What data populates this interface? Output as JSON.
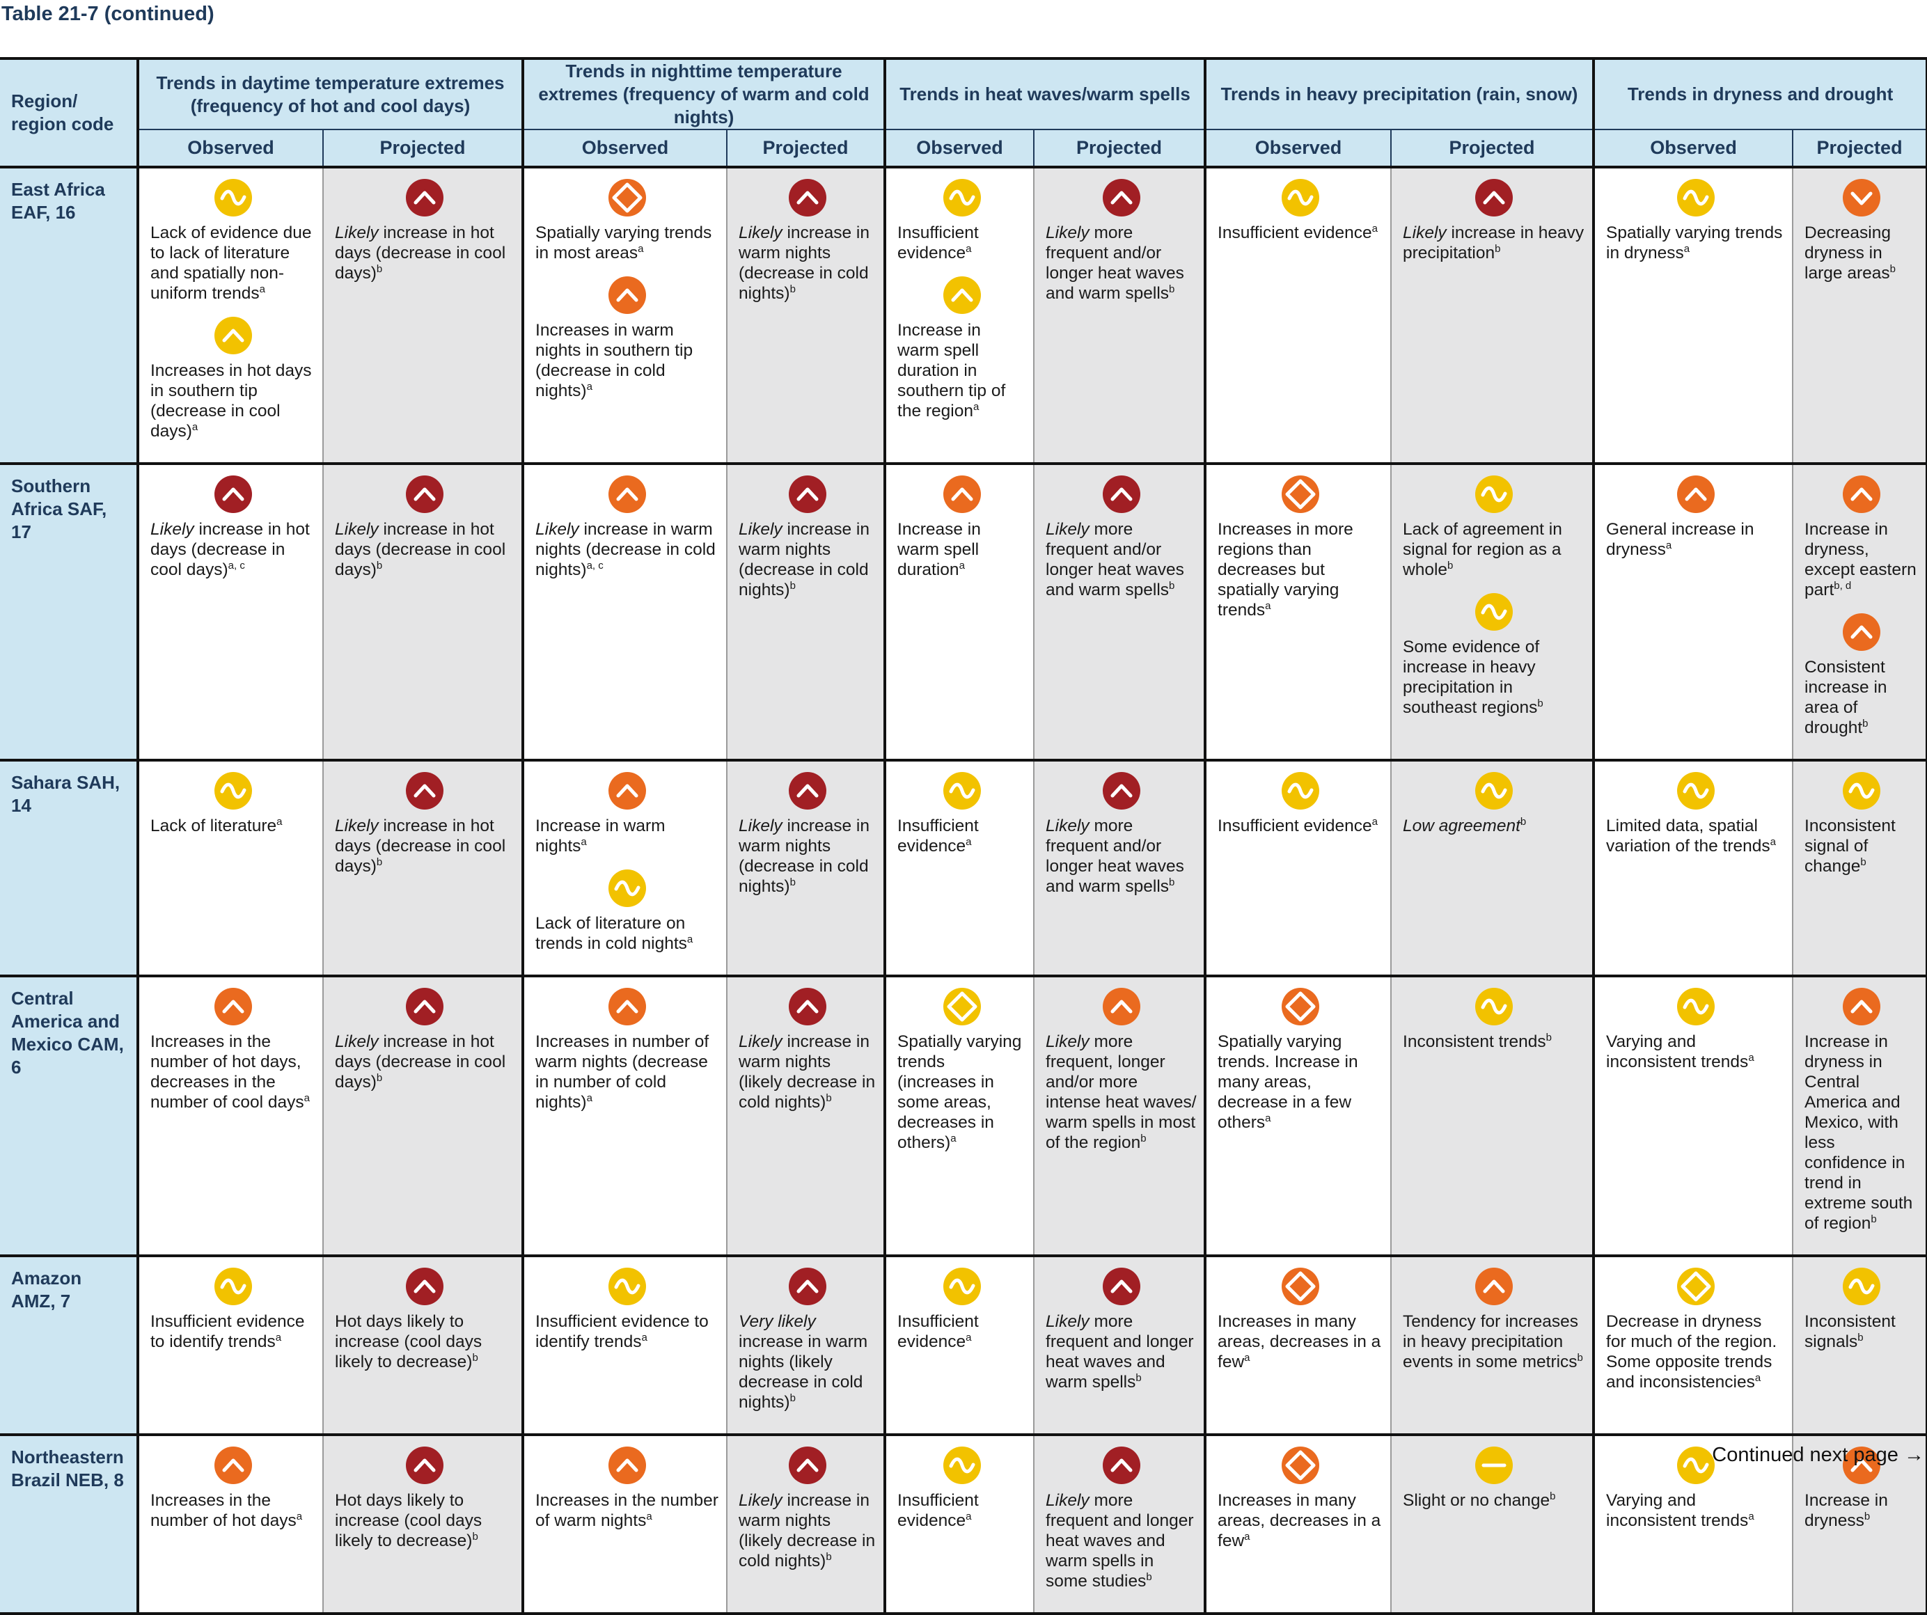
{
  "caption": "Table 21-7 (continued)",
  "footer": "Continued next page →",
  "colors": {
    "yellow": "#f2c200",
    "orange": "#ea6a1f",
    "dark_red": "#a11f24",
    "header_bg": "#cde6f2",
    "projected_bg": "#e5e5e6"
  },
  "header": {
    "region_label": "Region/ region code",
    "groups": [
      "Trends in daytime temperature extremes (frequency of hot and cool days)",
      "Trends in nighttime temperature extremes (frequency of warm and cold nights)",
      "Trends in heat waves/warm spells",
      "Trends in heavy precipitation (rain, snow)",
      "Trends in dryness and drought"
    ],
    "observed": "Observed",
    "projected": "Projected"
  },
  "rows": [
    {
      "region": "East Africa EAF, 16",
      "cells": [
        [
          {
            "icon": "yellow-wave-icon",
            "prefix": "",
            "text": "Lack of evidence due to lack of literature and spatially non-uniform trends",
            "note": "a"
          },
          {
            "icon": "yellow-up-icon",
            "prefix": "",
            "text": "Increases in hot days in southern tip (decrease in cool days)",
            "note": "a"
          }
        ],
        [
          {
            "icon": "darkred-up-icon",
            "prefix": "Likely",
            "text": "increase in hot days (decrease in cool days)",
            "note": "b"
          }
        ],
        [
          {
            "icon": "orange-diamond-icon",
            "prefix": "",
            "text": "Spatially varying trends in most areas",
            "note": "a"
          },
          {
            "icon": "orange-up-icon",
            "prefix": "",
            "text": "Increases in warm nights in southern tip (decrease in cold nights)",
            "note": "a"
          }
        ],
        [
          {
            "icon": "darkred-up-icon",
            "prefix": "Likely",
            "text": "increase in warm nights (decrease in cold nights)",
            "note": "b"
          }
        ],
        [
          {
            "icon": "yellow-wave-icon",
            "prefix": "",
            "text": "Insufficient evidence",
            "note": "a"
          },
          {
            "icon": "yellow-up-icon",
            "prefix": "",
            "text": "Increase in warm spell duration in southern tip of the region",
            "note": "a"
          }
        ],
        [
          {
            "icon": "darkred-up-icon",
            "prefix": "Likely",
            "text": "more frequent and/or longer heat waves and warm spells",
            "note": "b"
          }
        ],
        [
          {
            "icon": "yellow-wave-icon",
            "prefix": "",
            "text": "Insufficient evidence",
            "note": "a"
          }
        ],
        [
          {
            "icon": "darkred-up-icon",
            "prefix": "Likely",
            "text": "increase in heavy precipitation",
            "note": "b"
          }
        ],
        [
          {
            "icon": "yellow-wave-icon",
            "prefix": "",
            "text": "Spatially varying trends in dryness",
            "note": "a"
          }
        ],
        [
          {
            "icon": "orange-down-icon",
            "prefix": "",
            "text": "Decreasing dryness in large areas",
            "note": "b"
          }
        ]
      ]
    },
    {
      "region": "Southern Africa SAF, 17",
      "cells": [
        [
          {
            "icon": "darkred-up-icon",
            "prefix": "Likely",
            "text": "increase in hot days (decrease in cool days)",
            "note": "a, c"
          }
        ],
        [
          {
            "icon": "darkred-up-icon",
            "prefix": "Likely",
            "text": "increase in hot days (decrease in cool days)",
            "note": "b"
          }
        ],
        [
          {
            "icon": "orange-up-icon",
            "prefix": "Likely",
            "text": "increase in warm nights (decrease in cold nights)",
            "note": "a, c"
          }
        ],
        [
          {
            "icon": "darkred-up-icon",
            "prefix": "Likely",
            "text": "increase in warm nights (decrease in cold nights)",
            "note": "b"
          }
        ],
        [
          {
            "icon": "orange-up-icon",
            "prefix": "",
            "text": "Increase in warm spell duration",
            "note": "a"
          }
        ],
        [
          {
            "icon": "darkred-up-icon",
            "prefix": "Likely",
            "text": "more frequent and/or longer heat waves and warm spells",
            "note": "b"
          }
        ],
        [
          {
            "icon": "orange-diamond-icon",
            "prefix": "",
            "text": "Increases in more regions than decreases but spatially varying trends",
            "note": "a"
          }
        ],
        [
          {
            "icon": "yellow-wave-icon",
            "prefix": "",
            "text": "Lack of agreement in signal for region as a whole",
            "note": "b"
          },
          {
            "icon": "yellow-wave-icon",
            "prefix": "",
            "text": "Some evidence of increase in heavy precipitation in southeast regions",
            "note": "b"
          }
        ],
        [
          {
            "icon": "orange-up-icon",
            "prefix": "",
            "text": "General increase in dryness",
            "note": "a"
          }
        ],
        [
          {
            "icon": "orange-up-icon",
            "prefix": "",
            "text": "Increase in dryness, except eastern part",
            "note": "b, d"
          },
          {
            "icon": "orange-up-icon",
            "prefix": "",
            "text": "Consistent increase in area of drought",
            "note": "b"
          }
        ]
      ]
    },
    {
      "region": "Sahara SAH, 14",
      "cells": [
        [
          {
            "icon": "yellow-wave-icon",
            "prefix": "",
            "text": "Lack of literature",
            "note": "a"
          }
        ],
        [
          {
            "icon": "darkred-up-icon",
            "prefix": "Likely",
            "text": "increase in hot days (decrease in cool days)",
            "note": "b"
          }
        ],
        [
          {
            "icon": "orange-up-icon",
            "prefix": "",
            "text": "Increase in warm nights",
            "note": "a"
          },
          {
            "icon": "yellow-wave-icon",
            "prefix": "",
            "text": "Lack of literature on trends in cold nights",
            "note": "a"
          }
        ],
        [
          {
            "icon": "darkred-up-icon",
            "prefix": "Likely",
            "text": "increase in warm nights (decrease in cold nights)",
            "note": "b"
          }
        ],
        [
          {
            "icon": "yellow-wave-icon",
            "prefix": "",
            "text": "Insufficient evidence",
            "note": "a"
          }
        ],
        [
          {
            "icon": "darkred-up-icon",
            "prefix": "Likely",
            "text": "more frequent and/or longer heat waves and warm spells",
            "note": "b"
          }
        ],
        [
          {
            "icon": "yellow-wave-icon",
            "prefix": "",
            "text": "Insufficient evidence",
            "note": "a"
          }
        ],
        [
          {
            "icon": "yellow-wave-icon",
            "prefix": "Low agreement",
            "text": "",
            "note": "b"
          }
        ],
        [
          {
            "icon": "yellow-wave-icon",
            "prefix": "",
            "text": "Limited data, spatial variation of the trends",
            "note": "a"
          }
        ],
        [
          {
            "icon": "yellow-wave-icon",
            "prefix": "",
            "text": "Inconsistent signal of change",
            "note": "b"
          }
        ]
      ]
    },
    {
      "region": "Central America and Mexico CAM, 6",
      "cells": [
        [
          {
            "icon": "orange-up-icon",
            "prefix": "",
            "text": "Increases in the number of hot days, decreases in the number of cool days",
            "note": "a"
          }
        ],
        [
          {
            "icon": "darkred-up-icon",
            "prefix": "Likely",
            "text": "increase in hot days (decrease in cool days)",
            "note": "b"
          }
        ],
        [
          {
            "icon": "orange-up-icon",
            "prefix": "",
            "text": "Increases in number of warm nights (decrease in number of cold nights)",
            "note": "a"
          }
        ],
        [
          {
            "icon": "darkred-up-icon",
            "prefix": "Likely",
            "text": "increase in warm nights (likely decrease in cold nights)",
            "note": "b"
          }
        ],
        [
          {
            "icon": "yellow-diamond-icon",
            "prefix": "",
            "text": "Spatially varying trends (increases in some areas, decreases in others)",
            "note": "a"
          }
        ],
        [
          {
            "icon": "orange-up-icon",
            "prefix": "Likely",
            "text": "more frequent, longer and/or more intense heat waves/ warm spells in most of the region",
            "note": "b"
          }
        ],
        [
          {
            "icon": "orange-diamond-icon",
            "prefix": "",
            "text": "Spatially varying trends. Increase in many areas, decrease in a few others",
            "note": "a"
          }
        ],
        [
          {
            "icon": "yellow-wave-icon",
            "prefix": "",
            "text": "Inconsistent trends",
            "note": "b"
          }
        ],
        [
          {
            "icon": "yellow-wave-icon",
            "prefix": "",
            "text": "Varying and inconsistent trends",
            "note": "a"
          }
        ],
        [
          {
            "icon": "orange-up-icon",
            "prefix": "",
            "text": "Increase in dryness in Central America and Mexico, with less confidence in trend in extreme south of region",
            "note": "b"
          }
        ]
      ]
    },
    {
      "region": "Amazon AMZ, 7",
      "cells": [
        [
          {
            "icon": "yellow-wave-icon",
            "prefix": "",
            "text": "Insufficient evidence to identify trends",
            "note": "a"
          }
        ],
        [
          {
            "icon": "darkred-up-icon",
            "prefix": "",
            "text": "Hot days likely to increase (cool days likely to decrease)",
            "note": "b"
          }
        ],
        [
          {
            "icon": "yellow-wave-icon",
            "prefix": "",
            "text": "Insufficient evidence to identify trends",
            "note": "a"
          }
        ],
        [
          {
            "icon": "darkred-up-icon",
            "prefix": "Very likely",
            "text": "increase in warm nights (likely decrease in cold nights)",
            "note": "b"
          }
        ],
        [
          {
            "icon": "yellow-wave-icon",
            "prefix": "",
            "text": "Insufficient evidence",
            "note": "a"
          }
        ],
        [
          {
            "icon": "darkred-up-icon",
            "prefix": "Likely",
            "text": "more frequent and longer heat waves and warm spells",
            "note": "b"
          }
        ],
        [
          {
            "icon": "orange-diamond-icon",
            "prefix": "",
            "text": "Increases in many areas, decreases in a few",
            "note": "a"
          }
        ],
        [
          {
            "icon": "orange-up-icon",
            "prefix": "",
            "text": "Tendency for increases in heavy precipitation events in some metrics",
            "note": "b"
          }
        ],
        [
          {
            "icon": "yellow-diamond-icon",
            "prefix": "",
            "text": "Decrease in dryness for much of the region. Some opposite trends and inconsistencies",
            "note": "a"
          }
        ],
        [
          {
            "icon": "yellow-wave-icon",
            "prefix": "",
            "text": "Inconsistent signals",
            "note": "b"
          }
        ]
      ]
    },
    {
      "region": "Northeastern Brazil NEB, 8",
      "cells": [
        [
          {
            "icon": "orange-up-icon",
            "prefix": "",
            "text": "Increases in the number of hot days",
            "note": "a"
          }
        ],
        [
          {
            "icon": "darkred-up-icon",
            "prefix": "",
            "text": "Hot days likely to increase (cool days likely to decrease)",
            "note": "b"
          }
        ],
        [
          {
            "icon": "orange-up-icon",
            "prefix": "",
            "text": "Increases in the number of warm nights",
            "note": "a"
          }
        ],
        [
          {
            "icon": "darkred-up-icon",
            "prefix": "Likely",
            "text": "increase in warm nights (likely decrease in cold nights)",
            "note": "b"
          }
        ],
        [
          {
            "icon": "yellow-wave-icon",
            "prefix": "",
            "text": "Insufficient evidence",
            "note": "a"
          }
        ],
        [
          {
            "icon": "darkred-up-icon",
            "prefix": "Likely",
            "text": "more frequent and longer heat waves and warm spells in some studies",
            "note": "b"
          }
        ],
        [
          {
            "icon": "orange-diamond-icon",
            "prefix": "",
            "text": "Increases in many areas, decreases in a few",
            "note": "a"
          }
        ],
        [
          {
            "icon": "yellow-bar-icon",
            "prefix": "",
            "text": "Slight or no change",
            "note": "b"
          }
        ],
        [
          {
            "icon": "yellow-wave-icon",
            "prefix": "",
            "text": "Varying and inconsistent trends",
            "note": "a"
          }
        ],
        [
          {
            "icon": "orange-up-icon",
            "prefix": "",
            "text": "Increase in dryness",
            "note": "b"
          }
        ]
      ]
    }
  ]
}
